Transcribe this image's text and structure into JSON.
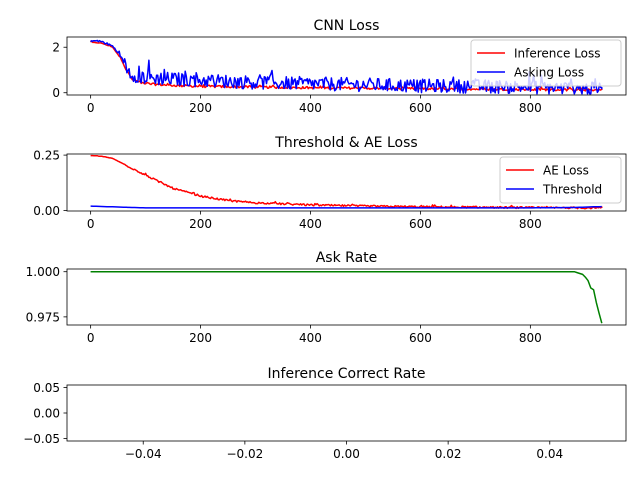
{
  "colors": {
    "red": "#ff0000",
    "blue": "#0000ff",
    "green": "#008000",
    "axis": "#000000",
    "legend_border": "#cccccc"
  },
  "chart_data": [
    {
      "id": "cnn-loss",
      "type": "line",
      "title": "CNN Loss",
      "xlim": [
        -43,
        974
      ],
      "ylim": [
        -0.1,
        2.45
      ],
      "xticks": [
        0,
        200,
        400,
        600,
        800
      ],
      "xtick_labels": [
        "0",
        "200",
        "400",
        "600",
        "800"
      ],
      "yticks": [
        0,
        2
      ],
      "ytick_labels": [
        "0",
        "2"
      ],
      "legend": {
        "position": "top-right",
        "entries": [
          "Inference Loss",
          "Asking Loss"
        ]
      },
      "series": [
        {
          "name": "Inference Loss",
          "color": "#ff0000",
          "noise": 0.05,
          "x": [
            0,
            20,
            40,
            55,
            65,
            75,
            90,
            110,
            150,
            200,
            300,
            400,
            500,
            600,
            700,
            800,
            930
          ],
          "y": [
            2.22,
            2.18,
            2.0,
            1.5,
            1.0,
            0.6,
            0.45,
            0.38,
            0.32,
            0.28,
            0.25,
            0.22,
            0.2,
            0.18,
            0.16,
            0.14,
            0.12
          ]
        },
        {
          "name": "Asking Loss",
          "color": "#0000ff",
          "noise": 0.3,
          "x": [
            0,
            20,
            40,
            55,
            65,
            75,
            90,
            110,
            150,
            200,
            300,
            400,
            500,
            600,
            700,
            800,
            930
          ],
          "y": [
            2.3,
            2.25,
            2.05,
            1.6,
            1.1,
            0.8,
            0.7,
            0.65,
            0.6,
            0.55,
            0.45,
            0.4,
            0.35,
            0.3,
            0.28,
            0.25,
            0.15
          ]
        }
      ]
    },
    {
      "id": "threshold-ae-loss",
      "type": "line",
      "title": "Threshold & AE Loss",
      "xlim": [
        -43,
        974
      ],
      "ylim": [
        -0.002,
        0.255
      ],
      "xticks": [
        0,
        200,
        400,
        600,
        800
      ],
      "xtick_labels": [
        "0",
        "200",
        "400",
        "600",
        "800"
      ],
      "yticks": [
        0.0,
        0.25
      ],
      "ytick_labels": [
        "0.00",
        "0.25"
      ],
      "legend": {
        "position": "top-right",
        "entries": [
          "AE Loss",
          "Threshold"
        ]
      },
      "series": [
        {
          "name": "AE Loss",
          "color": "#ff0000",
          "noise": 0.004,
          "x": [
            0,
            20,
            40,
            60,
            80,
            100,
            120,
            150,
            200,
            250,
            300,
            400,
            500,
            600,
            700,
            800,
            930
          ],
          "y": [
            0.248,
            0.245,
            0.235,
            0.21,
            0.185,
            0.16,
            0.135,
            0.1,
            0.065,
            0.045,
            0.035,
            0.025,
            0.02,
            0.017,
            0.015,
            0.013,
            0.012
          ]
        },
        {
          "name": "Threshold",
          "color": "#0000ff",
          "noise": 0,
          "x": [
            0,
            50,
            100,
            200,
            400,
            600,
            800,
            880,
            930
          ],
          "y": [
            0.02,
            0.016,
            0.012,
            0.012,
            0.012,
            0.012,
            0.012,
            0.014,
            0.018
          ]
        }
      ]
    },
    {
      "id": "ask-rate",
      "type": "line",
      "title": "Ask Rate",
      "xlim": [
        -43,
        974
      ],
      "ylim": [
        0.9705,
        1.0015
      ],
      "xticks": [
        0,
        200,
        400,
        600,
        800
      ],
      "xtick_labels": [
        "0",
        "200",
        "400",
        "600",
        "800"
      ],
      "yticks": [
        0.975,
        1.0
      ],
      "ytick_labels": [
        "0.975",
        "1.000"
      ],
      "series": [
        {
          "name": "Ask Rate",
          "color": "#008000",
          "noise": 0,
          "x": [
            0,
            880,
            890,
            895,
            900,
            905,
            910,
            915,
            920,
            925,
            930
          ],
          "y": [
            1.0,
            1.0,
            0.999,
            0.9985,
            0.997,
            0.995,
            0.991,
            0.99,
            0.983,
            0.977,
            0.9715
          ]
        }
      ]
    },
    {
      "id": "inference-correct-rate",
      "type": "line",
      "title": "Inference Correct Rate",
      "xlim": [
        -0.055,
        0.055
      ],
      "ylim": [
        -0.055,
        0.055
      ],
      "xticks": [
        -0.04,
        -0.02,
        0.0,
        0.02,
        0.04
      ],
      "xtick_labels": [
        "−0.04",
        "−0.02",
        "0.00",
        "0.02",
        "0.04"
      ],
      "yticks": [
        -0.05,
        0.0,
        0.05
      ],
      "ytick_labels": [
        "−0.05",
        "0.00",
        "0.05"
      ],
      "series": []
    }
  ]
}
